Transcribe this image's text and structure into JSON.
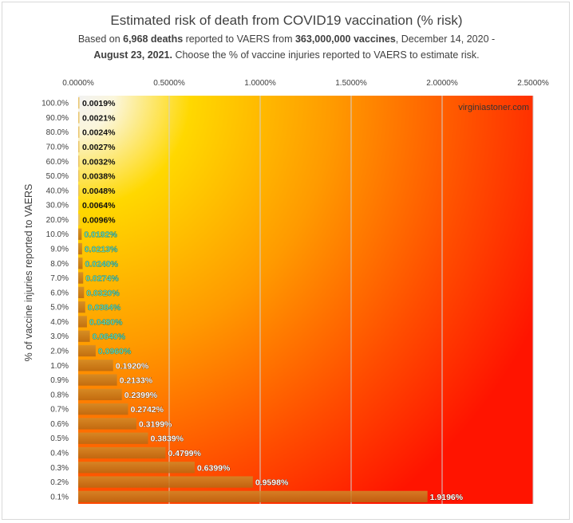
{
  "title": "Estimated risk of death from COVID19 vaccination (% risk)",
  "subtitle": {
    "p1": "Based on ",
    "deaths": "6,968",
    "p2": " deaths",
    "p3": " reported to VAERS from ",
    "vaccines": "363,000,000",
    "p4": " vaccines",
    "p5": ", December 14, 2020  -",
    "date": "August 23, 2021.",
    "p6": "  Choose the % of vaccine injuries reported to VAERS to estimate risk."
  },
  "watermark": "virginiastoner.com",
  "colors": {
    "bar_dark": "#c0701a",
    "bar_light": "#e8c060",
    "label_green": "#5fd3a8",
    "label_dark": "#111111",
    "label_white": "#ffffff",
    "bg_hot": "#ff1a00",
    "bg_warm": "#ffd400"
  },
  "chart_data": {
    "type": "bar",
    "orientation": "horizontal",
    "ylabel": "% of vaccine injuries reported to VAERS",
    "xlim": [
      0,
      2.5
    ],
    "x_ticks": [
      "0.0000%",
      "0.5000%",
      "1.0000%",
      "1.5000%",
      "2.0000%",
      "2.5000%"
    ],
    "x_axis_position": "top",
    "grid": "vertical",
    "categories": [
      "100.0%",
      "90.0%",
      "80.0%",
      "70.0%",
      "60.0%",
      "50.0%",
      "40.0%",
      "30.0%",
      "20.0%",
      "10.0%",
      "9.0%",
      "8.0%",
      "7.0%",
      "6.0%",
      "5.0%",
      "4.0%",
      "3.0%",
      "2.0%",
      "1.0%",
      "0.9%",
      "0.8%",
      "0.7%",
      "0.6%",
      "0.5%",
      "0.4%",
      "0.3%",
      "0.2%",
      "0.1%"
    ],
    "values": [
      0.0019,
      0.0021,
      0.0024,
      0.0027,
      0.0032,
      0.0038,
      0.0048,
      0.0064,
      0.0096,
      0.0192,
      0.0213,
      0.024,
      0.0274,
      0.032,
      0.0384,
      0.048,
      0.064,
      0.096,
      0.192,
      0.2133,
      0.2399,
      0.2742,
      0.3199,
      0.3839,
      0.4799,
      0.6399,
      0.9598,
      1.9196
    ],
    "labels": [
      "0.0019%",
      "0.0021%",
      "0.0024%",
      "0.0027%",
      "0.0032%",
      "0.0038%",
      "0.0048%",
      "0.0064%",
      "0.0096%",
      "0.0192%",
      "0.0213%",
      "0.0240%",
      "0.0274%",
      "0.0320%",
      "0.0384%",
      "0.0480%",
      "0.0640%",
      "0.0960%",
      "0.1920%",
      "0.2133%",
      "0.2399%",
      "0.2742%",
      "0.3199%",
      "0.3839%",
      "0.4799%",
      "0.6399%",
      "0.9598%",
      "1.9196%"
    ]
  }
}
